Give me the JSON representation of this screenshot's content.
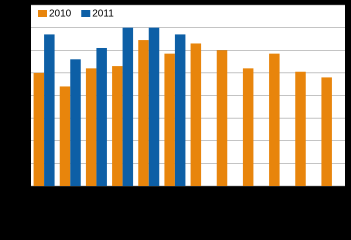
{
  "chart_data": {
    "type": "bar",
    "categories": [
      null,
      null,
      null,
      null,
      null,
      null,
      null,
      null,
      null,
      null,
      null,
      null
    ],
    "series": [
      {
        "name": "2010",
        "color": "#e8850c",
        "values": [
          5.0,
          4.4,
          5.2,
          5.3,
          6.45,
          5.85,
          6.3,
          6.0,
          5.2,
          5.85,
          5.05,
          4.8
        ]
      },
      {
        "name": "2011",
        "color": "#0d5fa6",
        "values": [
          6.7,
          5.6,
          6.1,
          7.0,
          7.0,
          6.7,
          null,
          null,
          null,
          null,
          null,
          null
        ]
      }
    ],
    "ylim": [
      0,
      8
    ],
    "yticks": [
      0,
      1,
      2,
      3,
      4,
      5,
      6,
      7,
      8
    ],
    "grid": true,
    "legend": "top-left"
  }
}
